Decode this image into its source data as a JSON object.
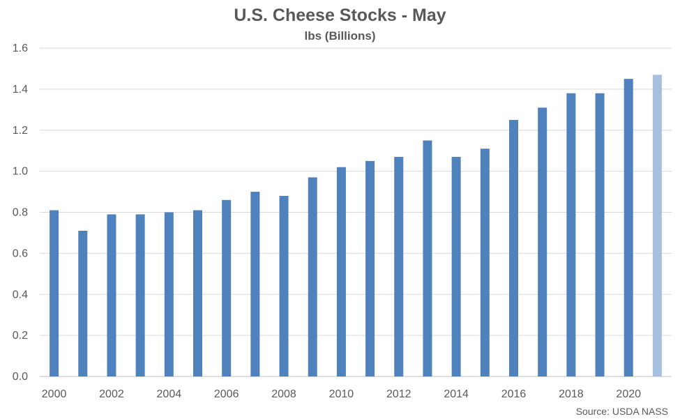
{
  "chart_data": {
    "type": "bar",
    "title": "U.S. Cheese Stocks - May",
    "subtitle": "lbs (Billions)",
    "source": "Source: USDA NASS",
    "categories": [
      "2000",
      "2001",
      "2002",
      "2003",
      "2004",
      "2005",
      "2006",
      "2007",
      "2008",
      "2009",
      "2010",
      "2011",
      "2012",
      "2013",
      "2014",
      "2015",
      "2016",
      "2017",
      "2018",
      "2019",
      "2020",
      "2021"
    ],
    "values": [
      0.81,
      0.71,
      0.79,
      0.79,
      0.8,
      0.81,
      0.86,
      0.9,
      0.88,
      0.97,
      1.02,
      1.05,
      1.07,
      1.15,
      1.07,
      1.11,
      1.25,
      1.31,
      1.38,
      1.38,
      1.45,
      1.47
    ],
    "highlight_index": 21,
    "xtick_labels": [
      "2000",
      "2002",
      "2004",
      "2006",
      "2008",
      "2010",
      "2012",
      "2014",
      "2016",
      "2018",
      "2020"
    ],
    "yticks": [
      "0.0",
      "0.2",
      "0.4",
      "0.6",
      "0.8",
      "1.0",
      "1.2",
      "1.4",
      "1.6"
    ],
    "ylim": [
      0,
      1.6
    ],
    "grid": true,
    "legend": "none",
    "xlabel": "",
    "ylabel": "",
    "colors": {
      "bar": "#4f81bd",
      "highlight_bar": "#a6bfdd",
      "grid": "#d9d9d9",
      "text": "#595959"
    }
  }
}
